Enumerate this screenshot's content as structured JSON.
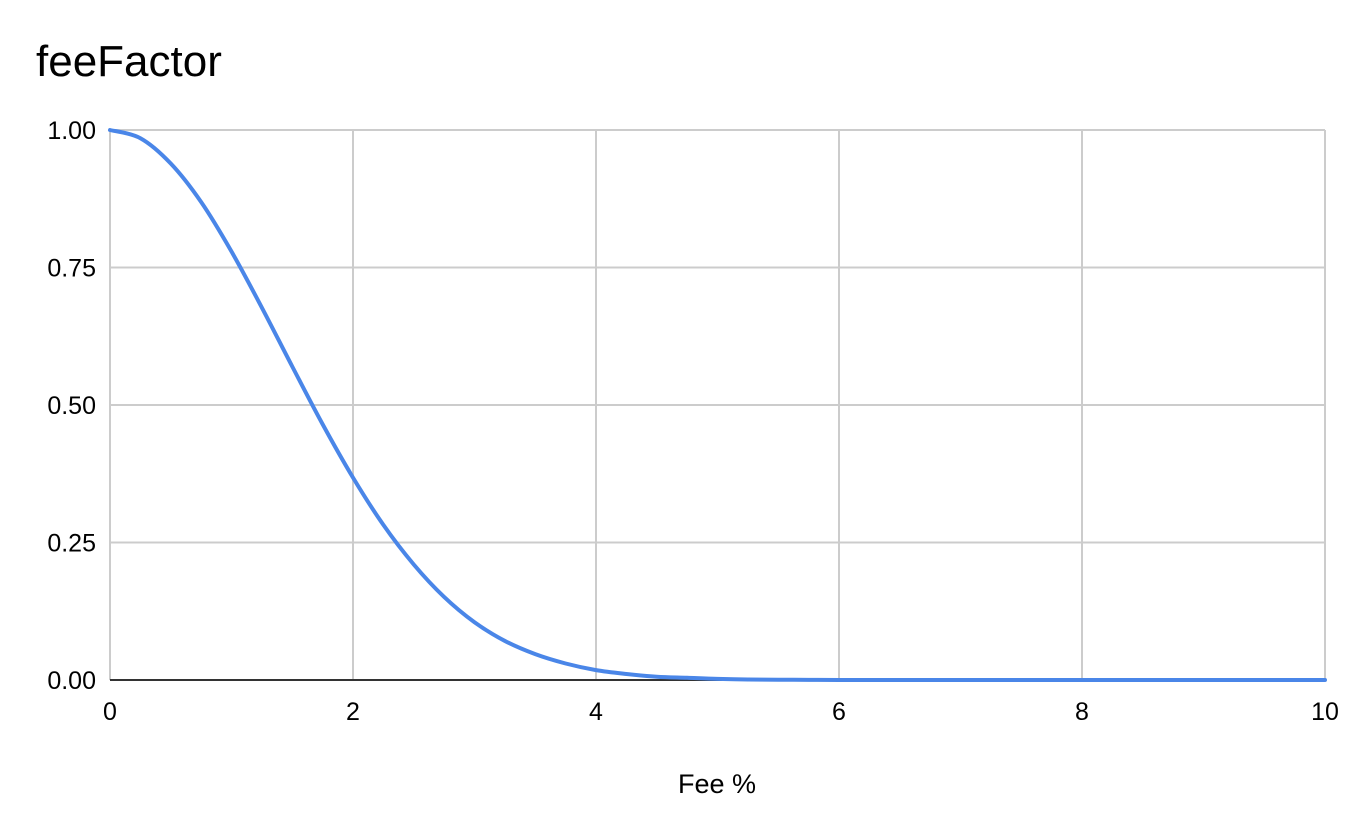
{
  "chart_data": {
    "type": "line",
    "title": "feeFactor",
    "xlabel": "Fee %",
    "ylabel": "",
    "xlim": [
      0,
      10
    ],
    "ylim": [
      0,
      1
    ],
    "x_ticks": [
      "0",
      "2",
      "4",
      "6",
      "8",
      "10"
    ],
    "y_ticks": [
      "0.00",
      "0.25",
      "0.50",
      "0.75",
      "1.00"
    ],
    "grid": true,
    "legend": "none",
    "series": [
      {
        "color": "#4a86e8",
        "x": [
          0,
          0.25,
          0.5,
          0.75,
          1,
          1.25,
          1.5,
          1.75,
          2,
          2.25,
          2.5,
          2.75,
          3,
          3.25,
          3.5,
          3.75,
          4,
          4.25,
          4.5,
          4.75,
          5,
          5.25,
          5.5,
          5.75,
          6,
          6.5,
          7,
          7.5,
          8,
          8.5,
          9,
          9.5,
          10
        ],
        "y": [
          1.0,
          0.985,
          0.939,
          0.869,
          0.779,
          0.677,
          0.57,
          0.465,
          0.368,
          0.282,
          0.21,
          0.151,
          0.105,
          0.071,
          0.047,
          0.03,
          0.018,
          0.011,
          0.006,
          0.004,
          0.002,
          0.001,
          0.0005,
          0.0003,
          0.0001,
          0.0,
          0.0,
          0.0,
          0.0,
          0.0,
          0.0,
          0.0,
          0.0
        ]
      }
    ]
  }
}
